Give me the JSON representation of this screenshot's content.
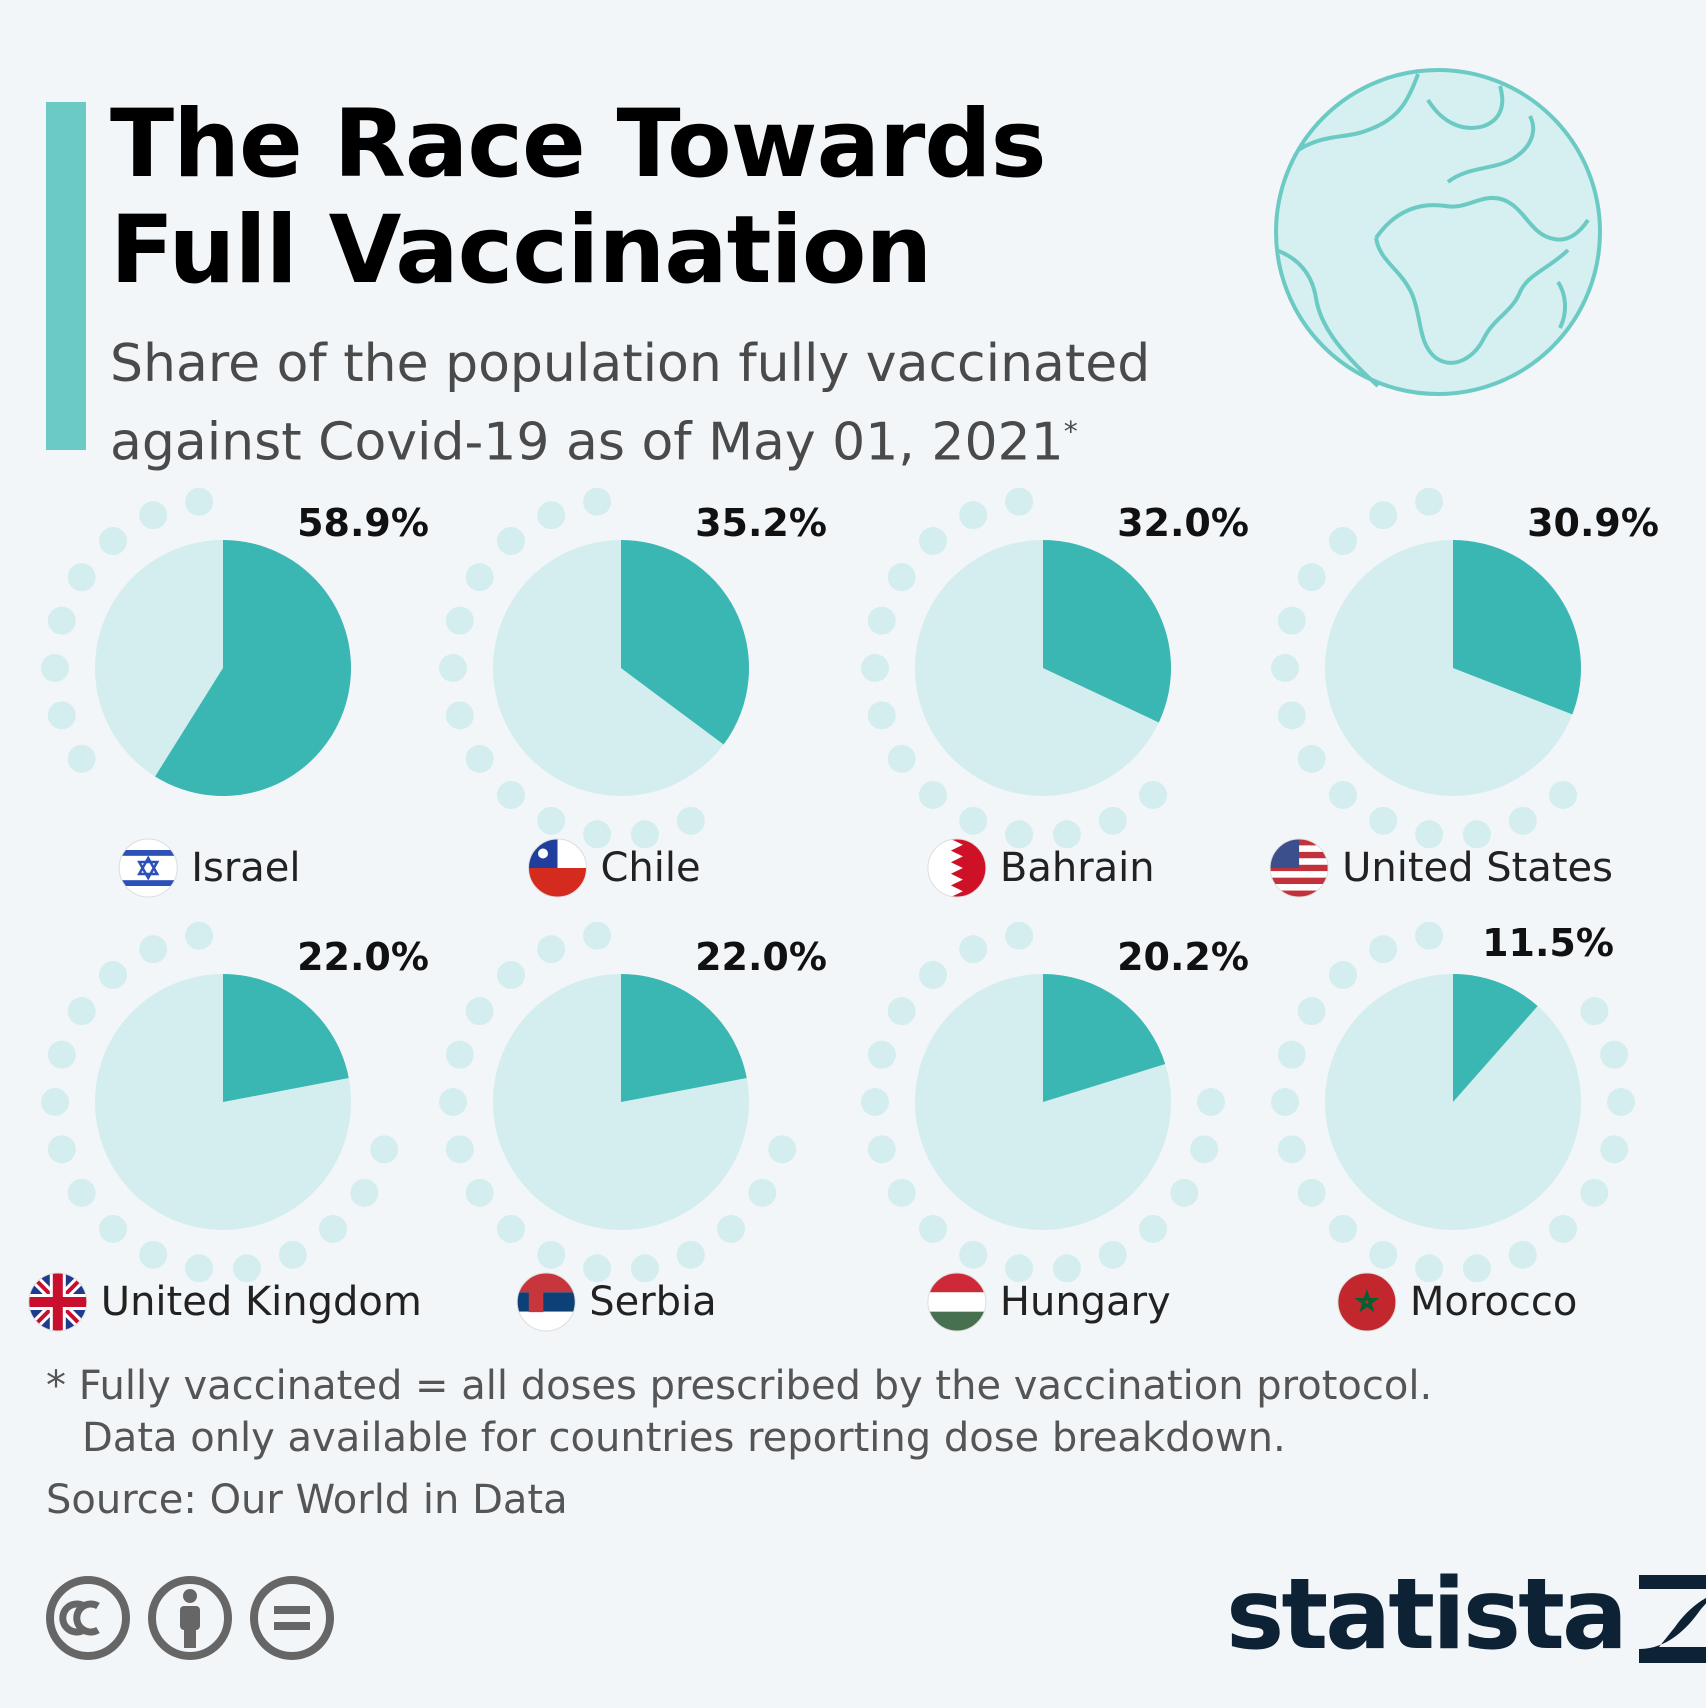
{
  "header": {
    "title": "The Race Towards Full Vaccination",
    "subtitle": "Share of the population fully vaccinated against Covid-19 as of May 01, 2021",
    "subtitle_marker": "*"
  },
  "chart_data": {
    "type": "pie",
    "title": "The Race Towards Full Vaccination",
    "subtitle": "Share of the population fully vaccinated against Covid-19 as of May 01, 2021*",
    "unit": "%",
    "categories": [
      "Israel",
      "Chile",
      "Bahrain",
      "United States",
      "United Kingdom",
      "Serbia",
      "Hungary",
      "Morocco"
    ],
    "values": [
      58.9,
      35.2,
      32.0,
      30.9,
      22.0,
      22.0,
      20.2,
      11.5
    ],
    "labels": [
      "58.9%",
      "35.2%",
      "32.0%",
      "30.9%",
      "22.0%",
      "22.0%",
      "20.2%",
      "11.5%"
    ],
    "flag_icons": [
      "israel-flag-icon",
      "chile-flag-icon",
      "bahrain-flag-icon",
      "united-states-flag-icon",
      "united-kingdom-flag-icon",
      "serbia-flag-icon",
      "hungary-flag-icon",
      "morocco-flag-icon"
    ],
    "colors": {
      "filled": "#3ab7b2",
      "remainder": "#d4edee",
      "dots": "#d4edee"
    }
  },
  "footer": {
    "note_line1": "* Fully vaccinated = all doses prescribed by the vaccination protocol.",
    "note_line2": "Data only available for countries reporting dose breakdown.",
    "source": "Source: Our World in Data",
    "brand": "statista",
    "license_icons": [
      "cc-icon",
      "attribution-icon",
      "no-derivatives-icon"
    ]
  }
}
